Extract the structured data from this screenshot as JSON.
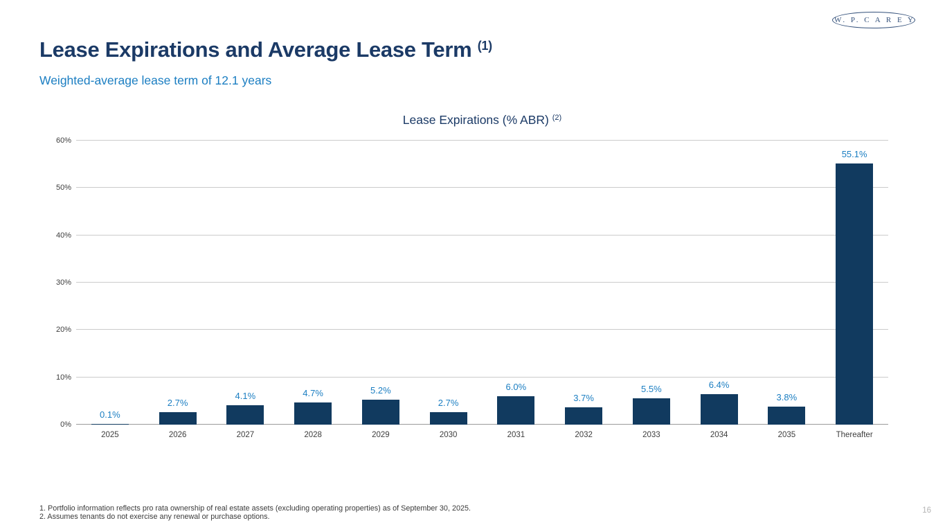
{
  "logo": {
    "text": "W. P. C A R E Y"
  },
  "header": {
    "title": "Lease Expirations and Average Lease Term",
    "title_superscript": "(1)",
    "subtitle": "Weighted-average lease term of 12.1 years"
  },
  "chart": {
    "title": "Lease Expirations (% ABR)",
    "title_superscript": "(2)"
  },
  "chart_data": {
    "type": "bar",
    "title": "Lease Expirations (% ABR) (2)",
    "categories": [
      "2025",
      "2026",
      "2027",
      "2028",
      "2029",
      "2030",
      "2031",
      "2032",
      "2033",
      "2034",
      "2035",
      "Thereafter"
    ],
    "values": [
      0.1,
      2.7,
      4.1,
      4.7,
      5.2,
      2.7,
      6.0,
      3.7,
      5.5,
      6.4,
      3.8,
      55.1
    ],
    "value_labels": [
      "0.1%",
      "2.7%",
      "4.1%",
      "4.7%",
      "5.2%",
      "2.7%",
      "6.0%",
      "3.7%",
      "5.5%",
      "6.4%",
      "3.8%",
      "55.1%"
    ],
    "xlabel": "",
    "ylabel": "",
    "ylim": [
      0,
      60
    ],
    "ytick_values": [
      0,
      10,
      20,
      30,
      40,
      50,
      60
    ],
    "ytick_labels": [
      "0%",
      "10%",
      "20%",
      "30%",
      "40%",
      "50%",
      "60%"
    ],
    "grid": true,
    "legend": false,
    "bar_color": "#113a5f",
    "value_label_color": "#1b7ec2"
  },
  "footnotes": [
    "1. Portfolio information reflects pro rata ownership of real estate assets (excluding operating properties) as of September 30, 2025.",
    "2. Assumes tenants do not exercise any renewal or purchase options."
  ],
  "page_number": "16",
  "colors": {
    "title_navy": "#1b3a66",
    "accent_blue": "#1b7ec2",
    "bar_navy": "#113a5f",
    "gridline": "#cbcbcb",
    "axis_line": "#9a9a9a",
    "tick_text": "#3d3d3d",
    "footnote_text": "#3a3a3a",
    "page_number_gray": "#b4b4b4"
  }
}
